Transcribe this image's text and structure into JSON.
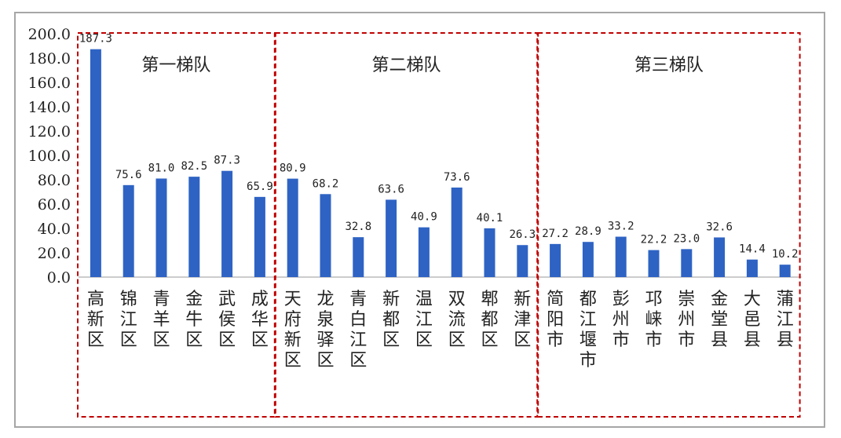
{
  "chart_data": {
    "type": "bar",
    "categories": [
      "高新区",
      "锦江区",
      "青羊区",
      "金牛区",
      "武侯区",
      "成华区",
      "天府新区",
      "龙泉驿区",
      "青白江区",
      "新都区",
      "温江区",
      "双流区",
      "郫都区",
      "新津区",
      "简阳市",
      "都江堰市",
      "彭州市",
      "邛崃市",
      "崇州市",
      "金堂县",
      "大邑县",
      "蒲江县"
    ],
    "values": [
      187.3,
      75.6,
      81.0,
      82.5,
      87.3,
      65.9,
      80.9,
      68.2,
      32.8,
      63.6,
      40.9,
      73.6,
      40.1,
      26.3,
      27.2,
      28.9,
      33.2,
      22.2,
      23.0,
      32.6,
      14.4,
      10.2
    ],
    "value_labels": [
      "187.3",
      "75.6",
      "81.0",
      "82.5",
      "87.3",
      "65.9",
      "80.9",
      "68.2",
      "32.8",
      "63.6",
      "40.9",
      "73.6",
      "40.1",
      "26.3",
      "27.2",
      "28.9",
      "33.2",
      "22.2",
      "23.0",
      "32.6",
      "14.4",
      "10.2"
    ],
    "ylim": [
      0,
      200
    ],
    "yticks": [
      "0.0",
      "20.0",
      "40.0",
      "60.0",
      "80.0",
      "100.0",
      "120.0",
      "140.0",
      "160.0",
      "180.0",
      "200.0"
    ],
    "groups": [
      {
        "label": "第一梯队",
        "start": 0,
        "end": 5
      },
      {
        "label": "第二梯队",
        "start": 6,
        "end": 13
      },
      {
        "label": "第三梯队",
        "start": 14,
        "end": 21
      }
    ],
    "colors": {
      "bar": "#2e63c4",
      "group_border": "#c00000",
      "frame": "#a6a6a6"
    },
    "grid": false,
    "legend": "none"
  }
}
